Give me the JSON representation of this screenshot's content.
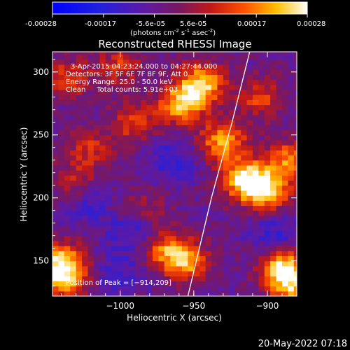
{
  "colorbar": {
    "ticks": [
      "-0.00028",
      "-0.00017",
      "-5.6e-05",
      "5.6e-05",
      "0.00017",
      "0.00028"
    ],
    "unit_label": {
      "prefix": "(photons cm",
      "exp1": "-2",
      "mid1": " s",
      "exp2": "-1",
      "mid2": " asec",
      "exp3": "-2",
      "suffix": ")"
    }
  },
  "chart_data": {
    "type": "heatmap",
    "title": "Reconstructed RHESSI Image",
    "xlabel": "Heliocentric X (arcsec)",
    "ylabel": "Heliocentric Y (arcsec)",
    "xlim": [
      -1046,
      -880
    ],
    "ylim": [
      122,
      316
    ],
    "xticks": [
      -1000,
      -950,
      -900
    ],
    "xtick_labels": [
      "−1000",
      "−950",
      "−900"
    ],
    "yticks": [
      150,
      200,
      250,
      300
    ],
    "ytick_labels": [
      "150",
      "200",
      "250",
      "300"
    ],
    "color_range": [
      -0.00028,
      0.00028
    ],
    "colormap": "blue-purple-red-orange-yellow-white",
    "peak": [
      -914,
      209
    ],
    "limb_curve": [
      [
        -954,
        122
      ],
      [
        -938,
        200
      ],
      [
        -924,
        260
      ],
      [
        -912,
        316
      ]
    ],
    "hot_regions": [
      {
        "x": -958,
        "y": 275,
        "w": 0.9
      },
      {
        "x": -944,
        "y": 292,
        "w": 0.85
      },
      {
        "x": -930,
        "y": 245,
        "w": 0.8
      },
      {
        "x": -915,
        "y": 215,
        "w": 1.0
      },
      {
        "x": -900,
        "y": 205,
        "w": 0.85
      },
      {
        "x": -885,
        "y": 230,
        "w": 0.7
      },
      {
        "x": -1040,
        "y": 150,
        "w": 0.8
      },
      {
        "x": -1038,
        "y": 135,
        "w": 0.7
      },
      {
        "x": -955,
        "y": 150,
        "w": 0.75
      },
      {
        "x": -970,
        "y": 160,
        "w": 0.6
      },
      {
        "x": -890,
        "y": 145,
        "w": 0.9
      },
      {
        "x": -882,
        "y": 130,
        "w": 0.7
      },
      {
        "x": -1035,
        "y": 295,
        "w": 0.5
      },
      {
        "x": -1000,
        "y": 305,
        "w": 0.45
      },
      {
        "x": -990,
        "y": 260,
        "w": 0.5
      },
      {
        "x": -1020,
        "y": 240,
        "w": 0.4
      },
      {
        "x": -1030,
        "y": 215,
        "w": 0.35
      },
      {
        "x": -905,
        "y": 280,
        "w": 0.5
      },
      {
        "x": -985,
        "y": 190,
        "w": 0.35
      }
    ],
    "cold_regions": [
      {
        "x": -990,
        "y": 175,
        "w": 0.6
      },
      {
        "x": -965,
        "y": 230,
        "w": 0.5
      },
      {
        "x": -1020,
        "y": 195,
        "w": 0.4
      },
      {
        "x": -895,
        "y": 170,
        "w": 0.5
      },
      {
        "x": -1000,
        "y": 140,
        "w": 0.45
      }
    ],
    "annotations": {
      "time": "3-Apr-2015 04:23:24.000 to 04:27:44.000",
      "detectors": "Detectors: 3F 5F 6F 7F 8F 9F, Att 0",
      "energy": "Energy Range: 25.0 - 50.0 keV",
      "clean": "Clean     Total counts: 5.91e+03",
      "peak_label": "Position of Peak = [−914,209]"
    }
  },
  "footer": {
    "timestamp": "20-May-2022 07:18"
  }
}
